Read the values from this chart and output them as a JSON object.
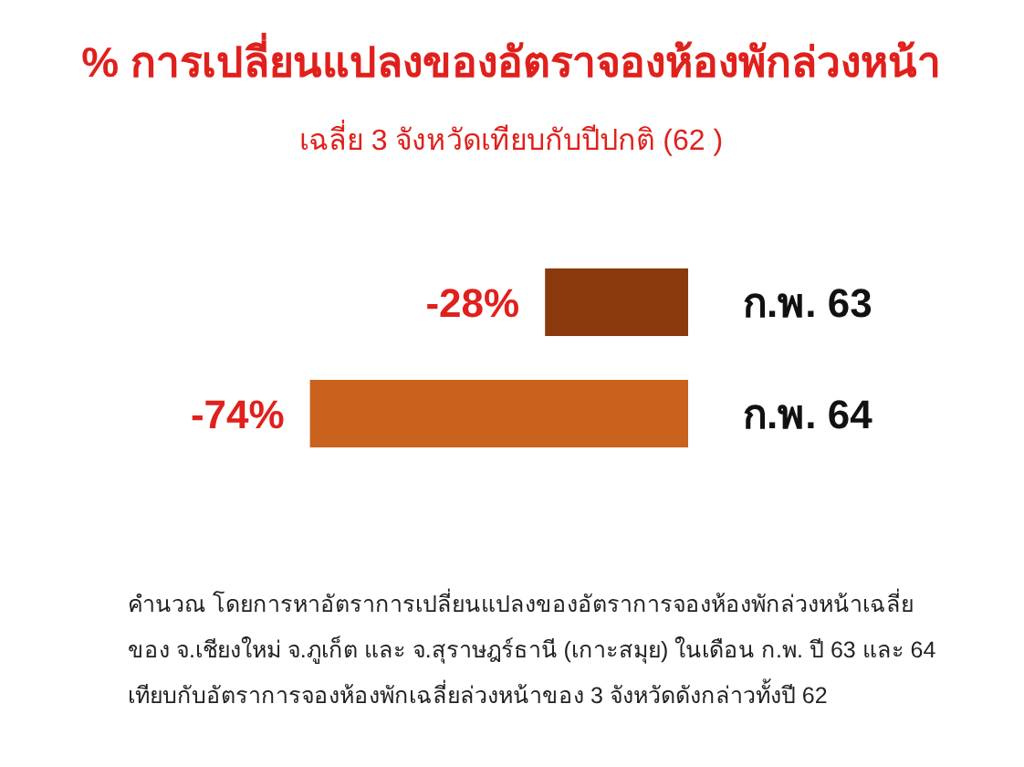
{
  "chart_data": {
    "type": "bar",
    "orientation": "horizontal",
    "title": "% การเปลี่ยนแปลงของอัตราจองห้องพักล่วงหน้า",
    "subtitle": "เฉลี่ย 3 จังหวัดเทียบกับปีปกติ (62 )",
    "categories": [
      "ก.พ. 63",
      "ก.พ. 64"
    ],
    "values": [
      -28,
      -74
    ],
    "colors": [
      "#8b3a0d",
      "#c9621c"
    ],
    "value_labels": [
      "-28%",
      "-74%"
    ],
    "annotations": [
      "คำนวณ โดยการหาอัตราการเปลี่ยนแปลงของอัตราการจองห้องพักล่วงหน้าเฉลี่ย",
      "ของ จ.เชียงใหม่ จ.ภูเก็ต และ จ.สุราษฎร์ธานี (เกาะสมุย) ในเดือน ก.พ. ปี 63 และ 64",
      "เทียบกับอัตราการจองห้องพักเฉลี่ยล่วงหน้าของ 3 จังหวัดดังกล่าวทั้งปี 62"
    ]
  }
}
